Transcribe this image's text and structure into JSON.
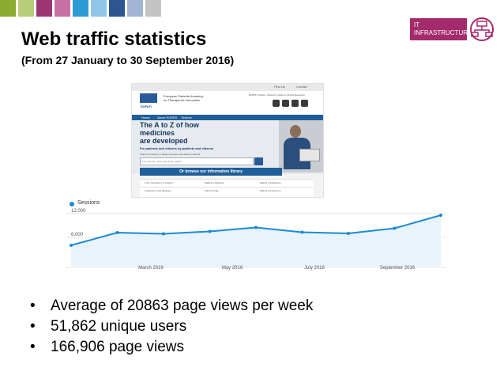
{
  "slide": {
    "title": "Web traffic statistics",
    "subtitle": "(From 27 January to 30 September 2016)",
    "strip_colors": [
      "#8dab2f",
      "#b9cc78",
      "#9c3672",
      "#c76fa5",
      "#2e9ad4",
      "#8fc6e8",
      "#2d5590",
      "#a2b6d3",
      "#c3c3c3"
    ],
    "bullets": [
      "Average of 20863 page views per week",
      "51,862 unique users",
      "166,906 page views"
    ]
  },
  "logo": {
    "line1": "IT",
    "line2": "INFRASTRUCTURE",
    "accent": "#a52a6b"
  },
  "website": {
    "topbar_links": [
      "Find Us",
      "Contact"
    ],
    "org_line1": "European Patients Academy",
    "org_line2": "on Therapeutic Innovation",
    "eu_label": "EUPATI",
    "contact": "EUPATI Toolbox. Patients' Guide to Clinical Research",
    "nav": [
      "Home",
      "About EUPATI",
      "Toolbox"
    ],
    "headline_lines": [
      "The A to Z of how",
      "medicines",
      "are developed"
    ],
    "tagline": "For patients and citizens by patients and citizens",
    "search_label": "Search our library of patient-focused educational material",
    "search_placeholder": "For example, 'How was drugs made?'",
    "browse_label": "Or browse our information library",
    "table": [
      [
        "From Laboratory to Patient",
        "Making a Medicine",
        "Effects of Medicines"
      ],
      [
        "Looking for new Medicine",
        "Clinical Trials",
        "Patient Involvement"
      ]
    ]
  },
  "chart_data": {
    "type": "line",
    "series": [
      {
        "name": "Sessions",
        "values": [
          4000,
          7200,
          6900,
          7500,
          8500,
          7300,
          7000,
          8300,
          11600
        ]
      }
    ],
    "x": [
      "",
      "",
      "",
      "",
      "",
      "",
      "",
      "",
      ""
    ],
    "x_tick_labels": [
      "March 2016",
      "May 2016",
      "July 2016",
      "September 2016"
    ],
    "y_tick_labels": [
      "12,000",
      "6,000"
    ],
    "ylim": [
      0,
      12000
    ],
    "color": "#1a8bd3",
    "legend": "top-left"
  }
}
